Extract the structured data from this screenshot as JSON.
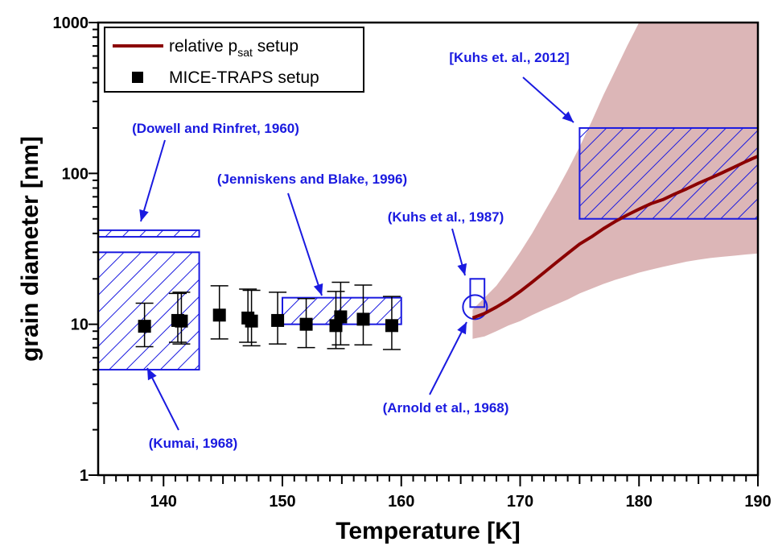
{
  "chart_data": {
    "type": "scatter",
    "xlabel": "Temperature [K]",
    "ylabel": "grain diameter [nm]",
    "xlim": [
      134.5,
      190
    ],
    "ylim": [
      1,
      1000
    ],
    "yscale": "log",
    "x_ticks": [
      140,
      150,
      160,
      170,
      180,
      190
    ],
    "y_ticks": [
      1,
      10,
      100,
      1000
    ],
    "grid": false,
    "legend": {
      "placement": "top-left",
      "entries": [
        {
          "label_main": "relative p",
          "label_sub": "sat",
          "label_rest": " setup",
          "marker": "line",
          "color": "#8b0000"
        },
        {
          "label_main": "MICE-TRAPS setup",
          "marker": "square",
          "color": "#000000"
        }
      ]
    },
    "series": [
      {
        "name": "MICE-TRAPS setup",
        "type": "scatter_errorbar",
        "color": "#000000",
        "points": [
          {
            "x": 138.4,
            "y": 9.7,
            "ylo": 7.1,
            "yhi": 13.8
          },
          {
            "x": 141.2,
            "y": 10.6,
            "ylo": 7.6,
            "yhi": 16.0
          },
          {
            "x": 141.5,
            "y": 10.5,
            "ylo": 7.4,
            "yhi": 16.3
          },
          {
            "x": 144.7,
            "y": 11.5,
            "ylo": 8.0,
            "yhi": 18.0
          },
          {
            "x": 147.1,
            "y": 11.0,
            "ylo": 7.6,
            "yhi": 17.1
          },
          {
            "x": 147.4,
            "y": 10.5,
            "ylo": 7.2,
            "yhi": 16.8
          },
          {
            "x": 149.6,
            "y": 10.6,
            "ylo": 7.4,
            "yhi": 16.3
          },
          {
            "x": 152.0,
            "y": 10.0,
            "ylo": 7.0,
            "yhi": 14.8
          },
          {
            "x": 154.5,
            "y": 9.8,
            "ylo": 6.9,
            "yhi": 16.5
          },
          {
            "x": 154.9,
            "y": 11.2,
            "ylo": 7.3,
            "yhi": 19.0
          },
          {
            "x": 156.8,
            "y": 10.8,
            "ylo": 7.3,
            "yhi": 18.2
          },
          {
            "x": 159.2,
            "y": 9.8,
            "ylo": 6.8,
            "yhi": 15.3
          }
        ]
      },
      {
        "name": "relative psat setup",
        "type": "line_with_band",
        "color": "#8b0000",
        "band_color": "#dcb6b7",
        "x": [
          166,
          167,
          168,
          169,
          170,
          171,
          172,
          173,
          174,
          175,
          176,
          177,
          178,
          179,
          180,
          181,
          182,
          183,
          184,
          185,
          186,
          187,
          188,
          189,
          190
        ],
        "y": [
          11,
          11.8,
          13,
          14.5,
          16.5,
          19,
          22,
          25.5,
          29.5,
          34,
          38,
          43,
          48,
          53,
          58,
          63,
          67,
          73,
          79,
          86,
          93,
          101,
          110,
          120,
          130
        ],
        "band_upper": [
          12.5,
          15,
          18,
          23,
          30,
          40,
          55,
          75,
          105,
          150,
          220,
          330,
          480,
          700,
          1000,
          1000,
          1000,
          1000,
          1000,
          1000,
          1000,
          1000,
          1000,
          1000,
          1000
        ],
        "band_lower": [
          8,
          8.3,
          9,
          9.8,
          10.5,
          11.5,
          12.5,
          13.5,
          14.6,
          16,
          17.2,
          18.5,
          19.7,
          20.8,
          22,
          23,
          24,
          25,
          26,
          26.8,
          27.5,
          28,
          28.5,
          29,
          29.5
        ]
      }
    ],
    "literature_regions": [
      {
        "label": "(Dowell and Rinfret, 1960)",
        "shape": "hatched_rect",
        "x0": 134.5,
        "x1": 143,
        "y0": 38,
        "y1": 42
      },
      {
        "label": "(Kumai, 1968)",
        "shape": "hatched_rect",
        "x0": 134.5,
        "x1": 143,
        "y0": 5,
        "y1": 30
      },
      {
        "label": "(Jenniskens and Blake, 1996)",
        "shape": "hatched_rect",
        "x0": 150,
        "x1": 160,
        "y0": 10,
        "y1": 15
      },
      {
        "label": "(Kuhs et al., 1987)",
        "shape": "open_square",
        "x0": 165.8,
        "x1": 167,
        "y0": 13,
        "y1": 20
      },
      {
        "label": "(Arnold et al., 1968)",
        "shape": "open_circle",
        "x": 166.2,
        "y": 13
      },
      {
        "label": "[Kuhs et. al., 2012]",
        "shape": "hatched_rect",
        "x0": 175,
        "x1": 190,
        "y0": 50,
        "y1": 200
      }
    ],
    "annotation_color": "#1a1ae0"
  }
}
